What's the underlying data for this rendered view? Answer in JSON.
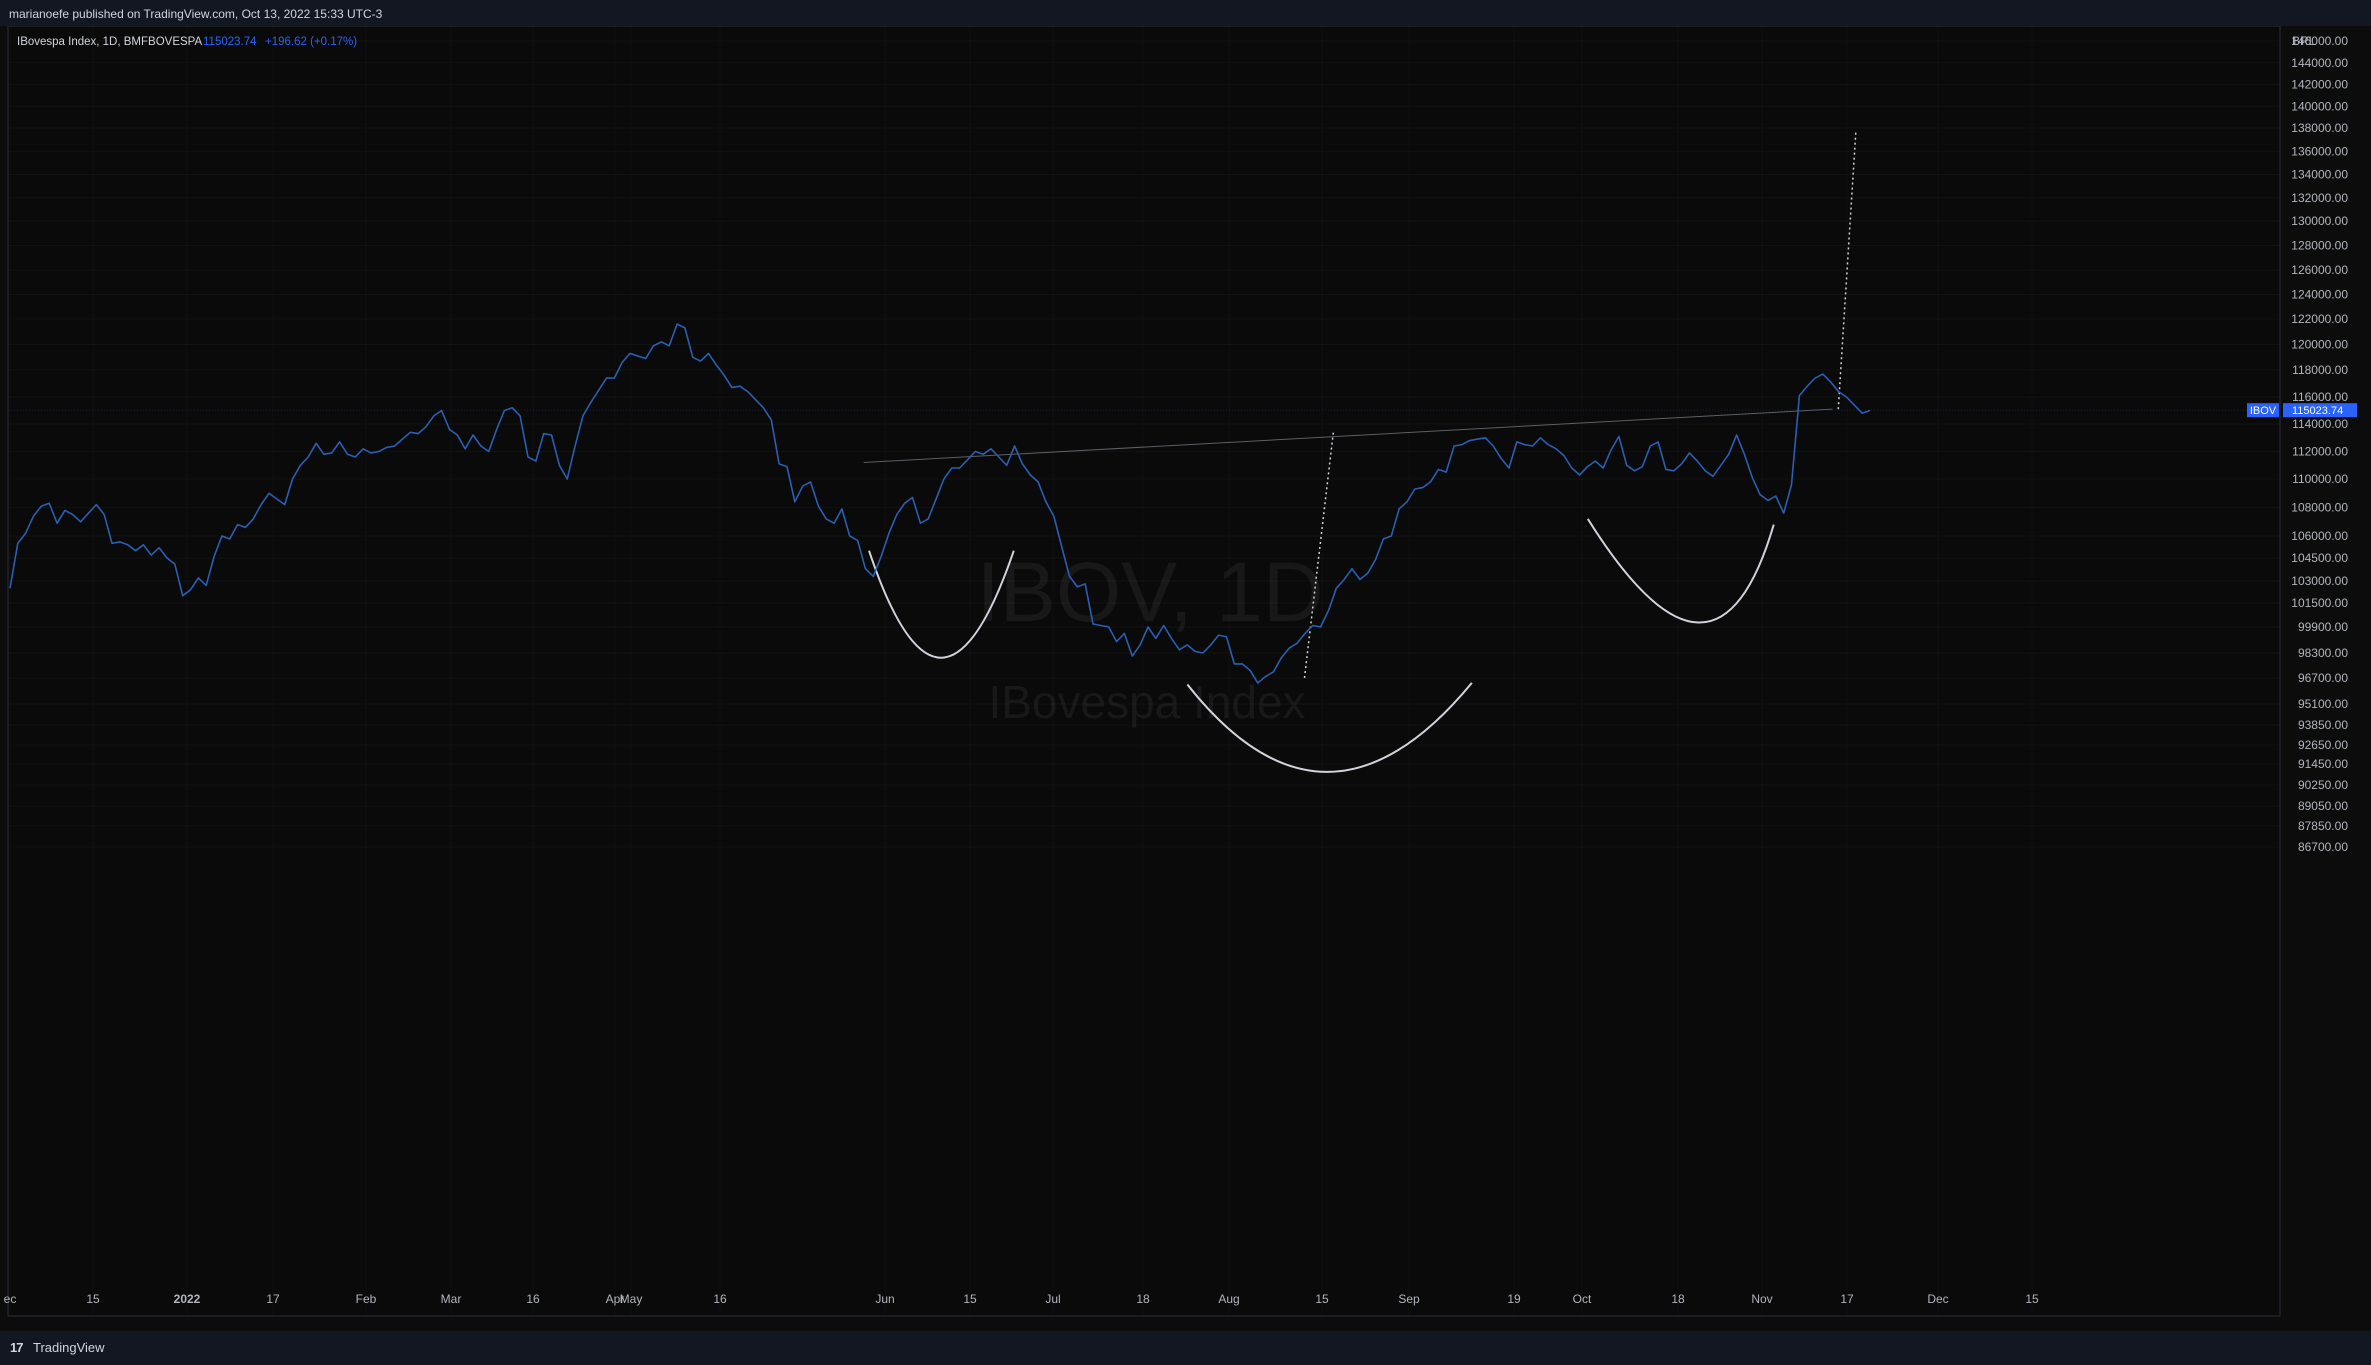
{
  "header": {
    "publish_text": "marianoefe published on TradingView.com, Oct 13, 2022 15:33 UTC-3"
  },
  "footer": {
    "brand": "TradingView",
    "logo_glyph": "17"
  },
  "chart_data": {
    "type": "line",
    "symbol_line": "IBovespa Index, 1D, BMFBOVESPA",
    "last_value": "115023.74",
    "change": "+196.62 (+0.17%)",
    "currency": "BRL",
    "watermark_main": "IBOV, 1D",
    "watermark_sub": "IBovespa Index",
    "price_tag_label": "IBOV",
    "price_tag_value": "115023.74",
    "y_ticks": [
      "146000.00",
      "144000.00",
      "142000.00",
      "140000.00",
      "138000.00",
      "136000.00",
      "134000.00",
      "132000.00",
      "130000.00",
      "128000.00",
      "126000.00",
      "124000.00",
      "122000.00",
      "120000.00",
      "118000.00",
      "116000.00",
      "114000.00",
      "112000.00",
      "110000.00",
      "108000.00",
      "106000.00",
      "104500.00",
      "103000.00",
      "101500.00",
      "99900.00",
      "98300.00",
      "96700.00",
      "95100.00",
      "93850.00",
      "92650.00",
      "91450.00",
      "90250.00",
      "89050.00",
      "87850.00",
      "86700.00"
    ],
    "x_ticks": [
      "ec",
      "15",
      "2022",
      "17",
      "Feb",
      "Mar",
      "16",
      "Apr",
      "May",
      "16",
      "Jun",
      "15",
      "Jul",
      "18",
      "Aug",
      "15",
      "Sep",
      "19",
      "Oct",
      "18",
      "Nov",
      "17",
      "Dec",
      "15"
    ],
    "series": [
      {
        "values": [
          102500,
          105500,
          106200,
          107400,
          108100,
          108300,
          106900,
          107800,
          107500,
          107000,
          107600,
          108200,
          107500,
          105500,
          105600,
          105400,
          105000,
          105400,
          104700,
          105200,
          104500,
          104100,
          102000,
          102400,
          103200,
          102700,
          104600,
          106000,
          105800,
          106800,
          106600,
          107200,
          108200,
          109000,
          108600,
          108200,
          110000,
          111000,
          111600,
          112600,
          111800,
          111900,
          112700,
          111800,
          111600,
          112200,
          111900,
          112000,
          112300,
          112400,
          112900,
          113400,
          113300,
          113800,
          114600,
          115000,
          113600,
          113200,
          112200,
          113200,
          112400,
          112000,
          113600,
          115000,
          115200,
          114600,
          111600,
          111300,
          113300,
          113200,
          111000,
          110000,
          112400,
          114600,
          115600,
          116500,
          117400,
          117400,
          118600,
          119300,
          119100,
          118900,
          119900,
          120200,
          119900,
          121600,
          121300,
          119000,
          118700,
          119300,
          118400,
          117600,
          116700,
          116800,
          116400,
          115800,
          115200,
          114300,
          111100,
          110900,
          108400,
          109500,
          109800,
          108100,
          107200,
          106900,
          107900,
          106000,
          105700,
          103800,
          103300,
          104600,
          106200,
          107500,
          108300,
          108700,
          106900,
          107200,
          108600,
          110000,
          110800,
          110800,
          111400,
          112000,
          111800,
          112200,
          111600,
          111000,
          112400,
          111100,
          110300,
          109800,
          108400,
          107400,
          105300,
          103300,
          102600,
          102800,
          100100,
          100000,
          99900,
          99000,
          99500,
          98100,
          98800,
          99900,
          99200,
          100000,
          99200,
          98500,
          98800,
          98400,
          98300,
          98800,
          99400,
          99300,
          97600,
          97600,
          97200,
          96400,
          96800,
          97100,
          98000,
          98600,
          98900,
          99500,
          100000,
          99900,
          101000,
          102500,
          103100,
          103800,
          103100,
          103500,
          104400,
          105800,
          106000,
          107900,
          108400,
          109300,
          109400,
          109800,
          110700,
          110500,
          112400,
          112500,
          112800,
          112900,
          113000,
          112400,
          111500,
          110800,
          112700,
          112500,
          112400,
          113000,
          112500,
          112200,
          111700,
          110800,
          110300,
          110900,
          111300,
          110800,
          112100,
          113100,
          111000,
          110600,
          110900,
          112400,
          112700,
          110700,
          110600,
          111100,
          111900,
          111300,
          110600,
          110200,
          111000,
          111800,
          113200,
          111800,
          110100,
          108900,
          108500,
          108800,
          107600,
          109600,
          116100,
          116800,
          117400,
          117700,
          117100,
          116400,
          116000,
          115400,
          114800,
          115000
        ]
      },
      {
        "values": []
      }
    ],
    "annotations": {
      "trendline": {
        "start": [
          "2022-04-28",
          111200
        ],
        "end": [
          "2022-10-13",
          115100
        ]
      },
      "target_line": {
        "start": [
          "2022-10-14",
          115100
        ],
        "end": [
          "2022-10-17",
          137700
        ]
      },
      "head_line": {
        "start": [
          "2022-07-14",
          96700
        ],
        "end": [
          "2022-07-19",
          113500
        ]
      },
      "arcs": [
        {
          "name": "left-shoulder",
          "from": [
            "2022-04-29",
            105000
          ],
          "bottom": [
            "2022-05-12",
            98000
          ],
          "to": [
            "2022-05-25",
            105000
          ]
        },
        {
          "name": "head",
          "from": [
            "2022-06-24",
            96300
          ],
          "bottom": [
            "2022-07-18",
            91000
          ],
          "to": [
            "2022-08-12",
            96400
          ]
        },
        {
          "name": "right-shoulder",
          "from": [
            "2022-09-01",
            107200
          ],
          "bottom": [
            "2022-09-20",
            100200
          ],
          "to": [
            "2022-10-03",
            106800
          ]
        }
      ]
    },
    "colors": {
      "background": "#131722",
      "line": "#2a5fb3",
      "accent": "#2962ff",
      "drawing": "#d1d4dc",
      "positive": "#2962ff",
      "text": "#b2b5be"
    }
  }
}
